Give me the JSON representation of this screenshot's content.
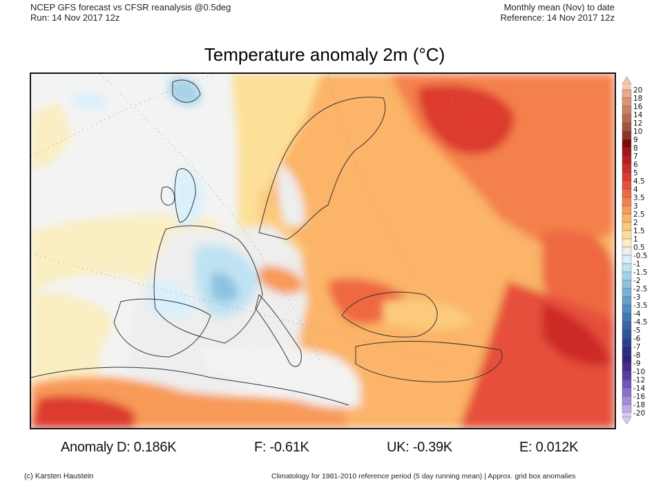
{
  "header": {
    "left_line1": "NCEP GFS forecast vs CFSR reanalysis @0.5deg",
    "left_line2": "Run: 14 Nov 2017 12z",
    "right_line1": "Monthly mean (Nov) to date",
    "right_line2": "Reference: 14 Nov 2017 12z"
  },
  "chart_data": {
    "type": "heatmap",
    "title": "Temperature anomaly 2m (°C)",
    "region": "Europe",
    "colorbar": {
      "labels": [
        "20",
        "18",
        "16",
        "14",
        "12",
        "10",
        "9",
        "8",
        "7",
        "6",
        "5",
        "4.5",
        "4",
        "3.5",
        "3",
        "2.5",
        "2",
        "1.5",
        "1",
        "0.5",
        "-0.5",
        "-1",
        "-1.5",
        "-2",
        "-2.5",
        "-3",
        "-3.5",
        "-4",
        "-4.5",
        "-5",
        "-6",
        "-7",
        "-8",
        "-9",
        "-10",
        "-12",
        "-14",
        "-16",
        "-18",
        "-20"
      ],
      "colors": [
        "#f6c7b2",
        "#e8aa90",
        "#d99478",
        "#c98063",
        "#b66b50",
        "#a35440",
        "#8e3528",
        "#7c0a0a",
        "#a5101a",
        "#bb1c22",
        "#cd2a28",
        "#dc3a2e",
        "#e6503a",
        "#ee6943",
        "#f4804c",
        "#f89a58",
        "#fbb468",
        "#fcca7c",
        "#fde097",
        "#faeec2",
        "#eeeeee",
        "#d9f0fb",
        "#bfe3f3",
        "#a6d3ea",
        "#8ec3e0",
        "#78b2d6",
        "#63a1cc",
        "#4f8dc0",
        "#3f79b4",
        "#3465a8",
        "#2f529c",
        "#2b3f8f",
        "#2a2d82",
        "#35217a",
        "#472b93",
        "#5a3aa7",
        "#7152bb",
        "#8a6dcc",
        "#a68ad9",
        "#c2abe4",
        "#d8c8ee"
      ],
      "extend": "both",
      "vmin": -20,
      "vmax": 20
    },
    "anomalies": [
      {
        "label": "Anomaly D:",
        "value": "0.186K"
      },
      {
        "label": "F:",
        "value": "-0.61K"
      },
      {
        "label": "UK:",
        "value": "-0.39K"
      },
      {
        "label": "E:",
        "value": "0.012K"
      }
    ]
  },
  "footer": {
    "credit": "(c) Karsten Haustein",
    "note": "Climatology for 1981-2010 reference period (5 day running mean) | Approx. grid box anomalies"
  }
}
